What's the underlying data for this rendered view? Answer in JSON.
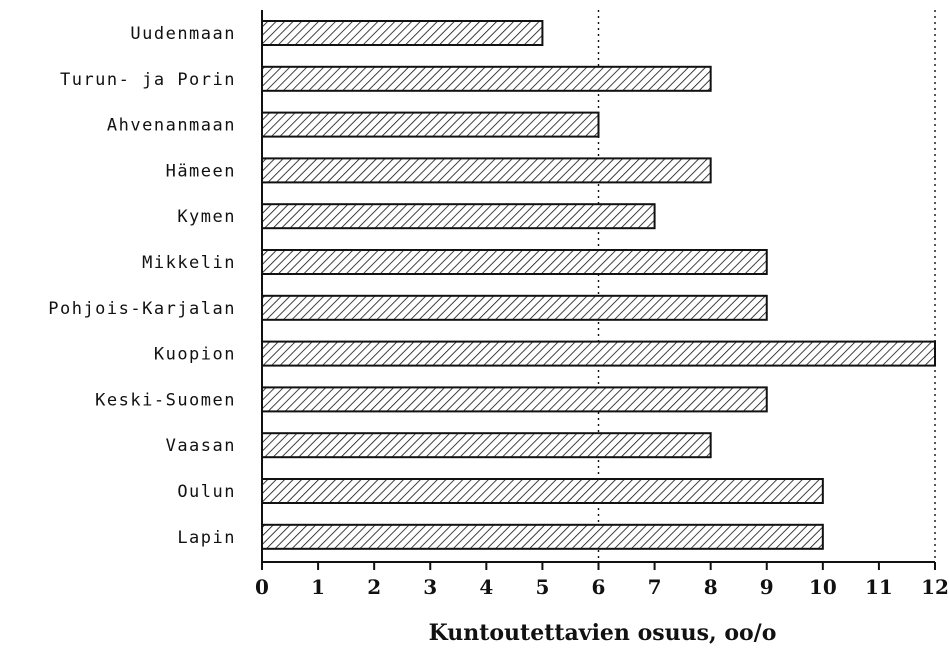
{
  "chart_data": {
    "type": "bar",
    "orientation": "horizontal",
    "categories": [
      "Uudenmaan",
      "Turun- ja Porin",
      "Ahvenanmaan",
      "Hämeen",
      "Kymen",
      "Mikkelin",
      "Pohjois-Karjalan",
      "Kuopion",
      "Keski-Suomen",
      "Vaasan",
      "Oulun",
      "Lapin"
    ],
    "values": [
      5,
      8,
      6,
      8,
      7,
      9,
      9,
      12,
      9,
      8,
      10,
      10
    ],
    "xlabel": "Kuntoutettavien osuus, oo/o",
    "ylabel": "",
    "xlim": [
      0,
      12
    ],
    "xticks": [
      0,
      1,
      2,
      3,
      4,
      5,
      6,
      7,
      8,
      9,
      10,
      11,
      12
    ],
    "reference_lines": [
      6,
      12
    ],
    "bar_fill": "hatched",
    "grid": false
  }
}
